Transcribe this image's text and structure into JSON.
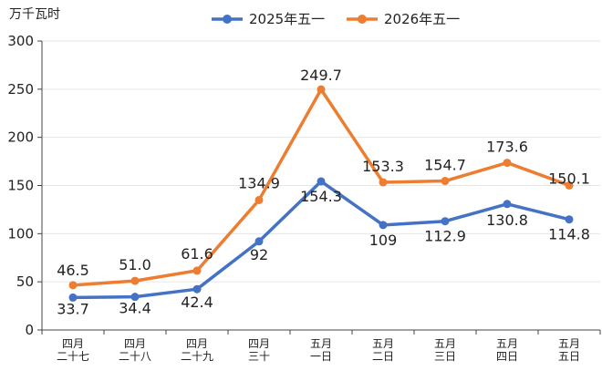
{
  "chart_data": {
    "type": "line",
    "y_unit": "万千瓦时",
    "categories": [
      [
        "四月",
        "二十七"
      ],
      [
        "四月",
        "二十八"
      ],
      [
        "四月",
        "二十九"
      ],
      [
        "四月",
        "三十"
      ],
      [
        "五月",
        "一日"
      ],
      [
        "五月",
        "二日"
      ],
      [
        "五月",
        "三日"
      ],
      [
        "五月",
        "四日"
      ],
      [
        "五月",
        "五日"
      ]
    ],
    "series": [
      {
        "name": "2025年五一",
        "color": "#4472c4",
        "values": [
          33.7,
          34.4,
          42.4,
          92,
          154.3,
          109,
          112.9,
          130.8,
          114.8
        ],
        "labels": [
          "33.7",
          "34.4",
          "42.4",
          "92",
          "154.3",
          "109",
          "112.9",
          "130.8",
          "114.8"
        ]
      },
      {
        "name": "2026年五一",
        "color": "#ed7d31",
        "values": [
          46.5,
          51.0,
          61.6,
          134.9,
          249.7,
          153.3,
          154.7,
          173.6,
          150.1
        ],
        "labels": [
          "46.5",
          "51.0",
          "61.6",
          "134.9",
          "249.7",
          "153.3",
          "154.7",
          "173.6",
          "150.1"
        ]
      }
    ],
    "ylim": [
      0,
      300
    ],
    "yticks": [
      "0",
      "50",
      "100",
      "150",
      "200",
      "250",
      "300"
    ],
    "grid": true,
    "legend_position": "top-center"
  }
}
